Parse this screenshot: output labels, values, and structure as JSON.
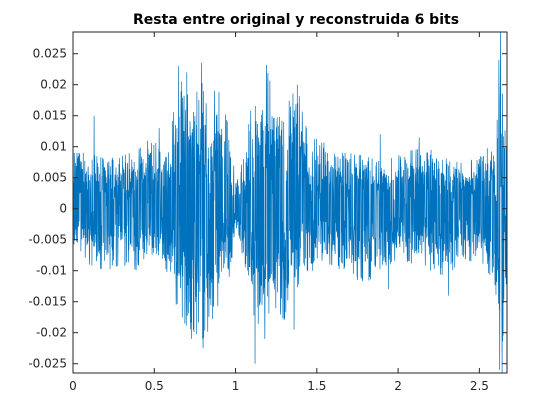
{
  "chart_data": {
    "type": "line",
    "title": "Resta entre original y reconstruida 6 bits",
    "xlabel": "",
    "ylabel": "",
    "xlim": [
      0,
      2.67
    ],
    "ylim": [
      -0.0265,
      0.0285
    ],
    "grid": false,
    "legend": "none",
    "x_ticks": [
      {
        "value": 0,
        "label": "0"
      },
      {
        "value": 0.5,
        "label": "0.5"
      },
      {
        "value": 1,
        "label": "1"
      },
      {
        "value": 1.5,
        "label": "1.5"
      },
      {
        "value": 2,
        "label": "2"
      },
      {
        "value": 2.5,
        "label": "2.5"
      }
    ],
    "y_ticks": [
      {
        "value": 0.025,
        "label": "0.025"
      },
      {
        "value": 0.02,
        "label": "0.02"
      },
      {
        "value": 0.015,
        "label": "0.015"
      },
      {
        "value": 0.01,
        "label": "0.01"
      },
      {
        "value": 0.005,
        "label": "0.005"
      },
      {
        "value": 0,
        "label": "0"
      },
      {
        "value": -0.005,
        "label": "-0.005"
      },
      {
        "value": -0.01,
        "label": "-0.01"
      },
      {
        "value": -0.015,
        "label": "-0.015"
      },
      {
        "value": -0.02,
        "label": "-0.02"
      },
      {
        "value": -0.025,
        "label": "-0.025"
      }
    ],
    "series": [
      {
        "color": "#0072bd",
        "envelope_x": [
          0,
          0.1,
          0.2,
          0.3,
          0.4,
          0.5,
          0.55,
          0.6,
          0.65,
          0.7,
          0.75,
          0.8,
          0.85,
          0.9,
          0.95,
          1.0,
          1.05,
          1.1,
          1.15,
          1.2,
          1.25,
          1.3,
          1.35,
          1.4,
          1.45,
          1.5,
          1.6,
          1.7,
          1.8,
          1.9,
          2.0,
          2.1,
          2.2,
          2.3,
          2.4,
          2.5,
          2.55,
          2.6,
          2.63,
          2.65,
          2.67
        ],
        "upper": [
          0.009,
          0.009,
          0.008,
          0.0085,
          0.0095,
          0.012,
          0.008,
          0.012,
          0.022,
          0.018,
          0.022,
          0.02,
          0.014,
          0.019,
          0.014,
          0.006,
          0.008,
          0.017,
          0.016,
          0.022,
          0.016,
          0.015,
          0.019,
          0.018,
          0.011,
          0.012,
          0.009,
          0.009,
          0.0085,
          0.0075,
          0.009,
          0.0095,
          0.01,
          0.008,
          0.0085,
          0.008,
          0.011,
          0.01,
          0.024,
          0.015,
          0.009
        ],
        "lower": [
          -0.008,
          -0.009,
          -0.01,
          -0.009,
          -0.01,
          -0.007,
          -0.008,
          -0.012,
          -0.017,
          -0.019,
          -0.02,
          -0.021,
          -0.019,
          -0.015,
          -0.013,
          -0.004,
          -0.008,
          -0.017,
          -0.019,
          -0.017,
          -0.016,
          -0.018,
          -0.012,
          -0.015,
          -0.011,
          -0.009,
          -0.009,
          -0.011,
          -0.012,
          -0.01,
          -0.008,
          -0.009,
          -0.01,
          -0.011,
          -0.008,
          -0.009,
          -0.011,
          -0.016,
          -0.026,
          -0.019,
          -0.01
        ],
        "spikes": [
          {
            "x": 0.13,
            "y": 0.015
          },
          {
            "x": 0.53,
            "y": 0.013
          },
          {
            "x": 0.65,
            "y": 0.023
          },
          {
            "x": 0.7,
            "y": 0.022
          },
          {
            "x": 0.79,
            "y": 0.0235
          },
          {
            "x": 0.8,
            "y": -0.0225
          },
          {
            "x": 0.73,
            "y": -0.021
          },
          {
            "x": 0.87,
            "y": 0.019
          },
          {
            "x": 1.12,
            "y": -0.025
          },
          {
            "x": 1.19,
            "y": 0.0232
          },
          {
            "x": 1.18,
            "y": -0.021
          },
          {
            "x": 1.38,
            "y": 0.02
          },
          {
            "x": 1.36,
            "y": -0.0195
          },
          {
            "x": 1.89,
            "y": 0.012
          },
          {
            "x": 1.94,
            "y": -0.013
          },
          {
            "x": 2.13,
            "y": 0.0115
          },
          {
            "x": 2.31,
            "y": -0.014
          },
          {
            "x": 2.62,
            "y": 0.024
          },
          {
            "x": 2.625,
            "y": -0.026
          },
          {
            "x": 2.63,
            "y": 0.0285
          },
          {
            "x": 2.64,
            "y": -0.0265
          }
        ]
      }
    ]
  }
}
